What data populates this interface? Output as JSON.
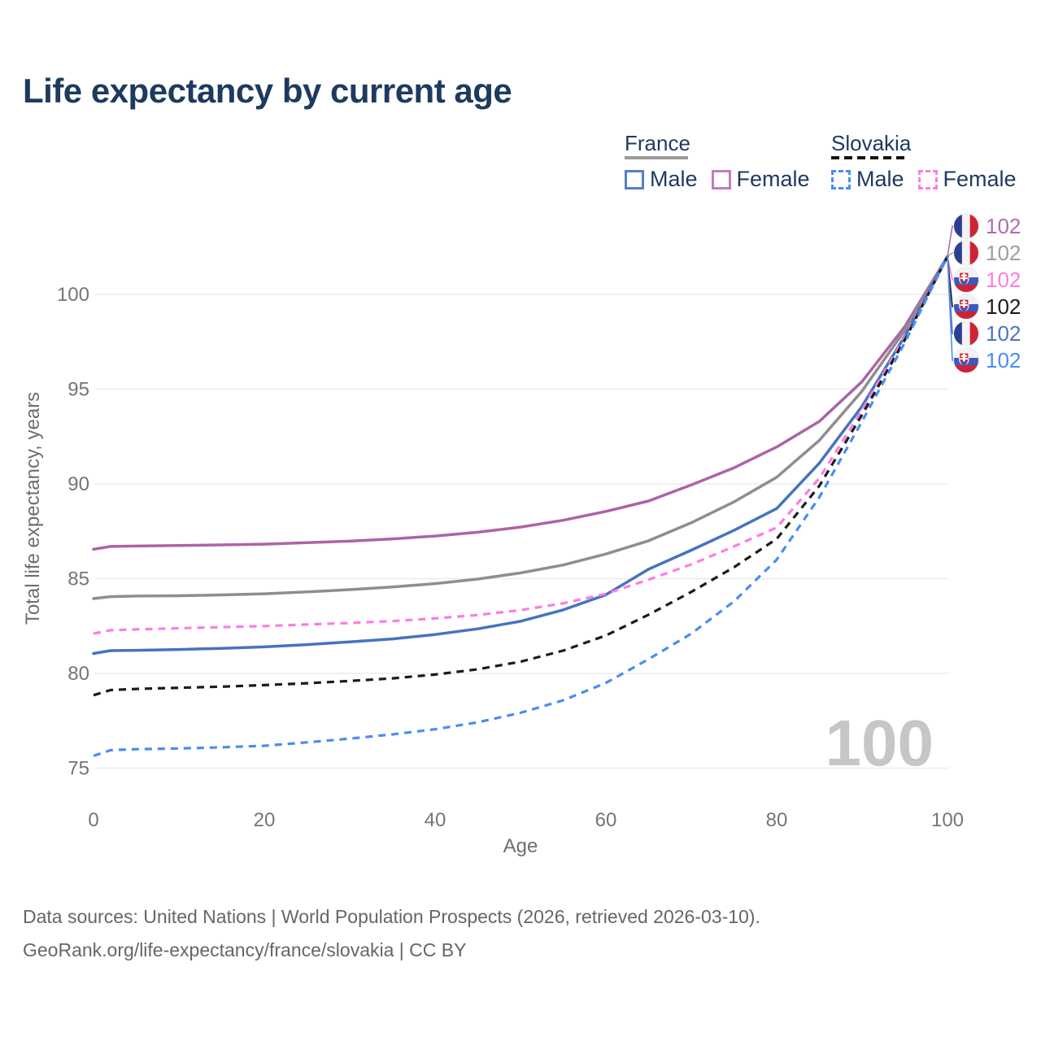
{
  "title": "Life expectancy by current age",
  "legend": {
    "france": {
      "label": "France",
      "male": "Male",
      "female": "Female"
    },
    "slovakia": {
      "label": "Slovakia",
      "male": "Male",
      "female": "Female"
    }
  },
  "footer": {
    "line1": "Data sources: United Nations | World Population Prospects (2026, retrieved 2026-03-10).",
    "line2": "GeoRank.org/life-expectancy/france/slovakia | CC BY"
  },
  "colors": {
    "title_text": "#1d3a5f",
    "tick_text": "#757575",
    "axis_label_text": "#6e6e6e",
    "gridline": "#ebebeb",
    "watermark": "#c6c6c6",
    "france_male": "#4673c0",
    "france_female": "#ab64a6",
    "france_both": "#8e8e8e",
    "slovakia_male": "#4a8df2",
    "slovakia_female": "#fb7de4",
    "slovakia_both": "#1b1b1b"
  },
  "chart_data": {
    "type": "line",
    "title": "Life expectancy by current age",
    "xlabel": "Age",
    "ylabel": "Total life expectancy, years",
    "x_ticks": [
      0,
      20,
      40,
      60,
      80,
      100
    ],
    "y_ticks": [
      75,
      80,
      85,
      90,
      95,
      100
    ],
    "xlim": [
      0,
      100
    ],
    "ylim": [
      74,
      102.5
    ],
    "grid": "horizontal-only",
    "age_counter": "100",
    "x": [
      0,
      2,
      5,
      10,
      15,
      20,
      25,
      30,
      35,
      40,
      45,
      50,
      55,
      60,
      65,
      70,
      75,
      80,
      85,
      90,
      95,
      100
    ],
    "series": [
      {
        "name": "France Female",
        "country": "france",
        "sex": "female",
        "style": "solid",
        "color": "#ab64a6",
        "values": [
          86.55,
          86.7,
          86.72,
          86.75,
          86.78,
          86.82,
          86.9,
          86.98,
          87.1,
          87.25,
          87.45,
          87.72,
          88.08,
          88.55,
          89.1,
          89.95,
          90.85,
          91.95,
          93.3,
          95.4,
          98.3,
          102.0
        ]
      },
      {
        "name": "France Both sexes",
        "country": "france",
        "sex": "both",
        "style": "solid",
        "color": "#8e8e8e",
        "values": [
          83.95,
          84.05,
          84.08,
          84.1,
          84.14,
          84.2,
          84.3,
          84.42,
          84.56,
          84.74,
          84.98,
          85.3,
          85.72,
          86.3,
          87.0,
          87.95,
          89.05,
          90.35,
          92.3,
          94.9,
          98.1,
          102.0
        ]
      },
      {
        "name": "France Male",
        "country": "france",
        "sex": "male",
        "style": "solid",
        "color": "#4673c0",
        "values": [
          81.05,
          81.2,
          81.22,
          81.26,
          81.32,
          81.4,
          81.52,
          81.66,
          81.82,
          82.05,
          82.35,
          82.75,
          83.35,
          84.15,
          85.5,
          86.5,
          87.55,
          88.7,
          91.1,
          94.1,
          97.8,
          102.0
        ]
      },
      {
        "name": "Slovakia Female",
        "country": "slovakia",
        "sex": "female",
        "style": "dashed",
        "color": "#fb7de4",
        "values": [
          82.1,
          82.28,
          82.32,
          82.38,
          82.44,
          82.5,
          82.58,
          82.66,
          82.76,
          82.9,
          83.08,
          83.34,
          83.7,
          84.2,
          84.95,
          85.75,
          86.7,
          87.7,
          90.3,
          93.9,
          97.75,
          102.0
        ]
      },
      {
        "name": "Slovakia Both sexes",
        "country": "slovakia",
        "sex": "both",
        "style": "dashed",
        "color": "#1b1b1b",
        "values": [
          78.85,
          79.12,
          79.18,
          79.24,
          79.3,
          79.38,
          79.48,
          79.6,
          79.74,
          79.94,
          80.22,
          80.62,
          81.2,
          82.0,
          83.1,
          84.3,
          85.6,
          87.1,
          89.9,
          93.65,
          97.6,
          102.0
        ]
      },
      {
        "name": "Slovakia Male",
        "country": "slovakia",
        "sex": "male",
        "style": "dashed",
        "color": "#4a8df2",
        "values": [
          75.65,
          75.95,
          76.0,
          76.04,
          76.1,
          76.18,
          76.36,
          76.56,
          76.78,
          77.05,
          77.42,
          77.92,
          78.58,
          79.5,
          80.75,
          82.1,
          83.8,
          86.0,
          89.3,
          93.3,
          97.45,
          102.0
        ]
      }
    ],
    "end_labels": [
      {
        "country": "france",
        "flag": "france-flag",
        "value": "102",
        "color": "#b06cab",
        "series": "France Female"
      },
      {
        "country": "france",
        "flag": "france-flag",
        "value": "102",
        "color": "#9e9e9e",
        "series": "France Both sexes"
      },
      {
        "country": "slovakia",
        "flag": "slovakia-flag",
        "value": "102",
        "color": "#fb7de4",
        "series": "Slovakia Female"
      },
      {
        "country": "slovakia",
        "flag": "slovakia-flag",
        "value": "102",
        "color": "#1b1b1b",
        "series": "Slovakia Both sexes"
      },
      {
        "country": "france",
        "flag": "france-flag",
        "value": "102",
        "color": "#4a74c4",
        "series": "France Male"
      },
      {
        "country": "slovakia",
        "flag": "slovakia-flag",
        "value": "102",
        "color": "#4a8df2",
        "series": "Slovakia Male"
      }
    ]
  }
}
